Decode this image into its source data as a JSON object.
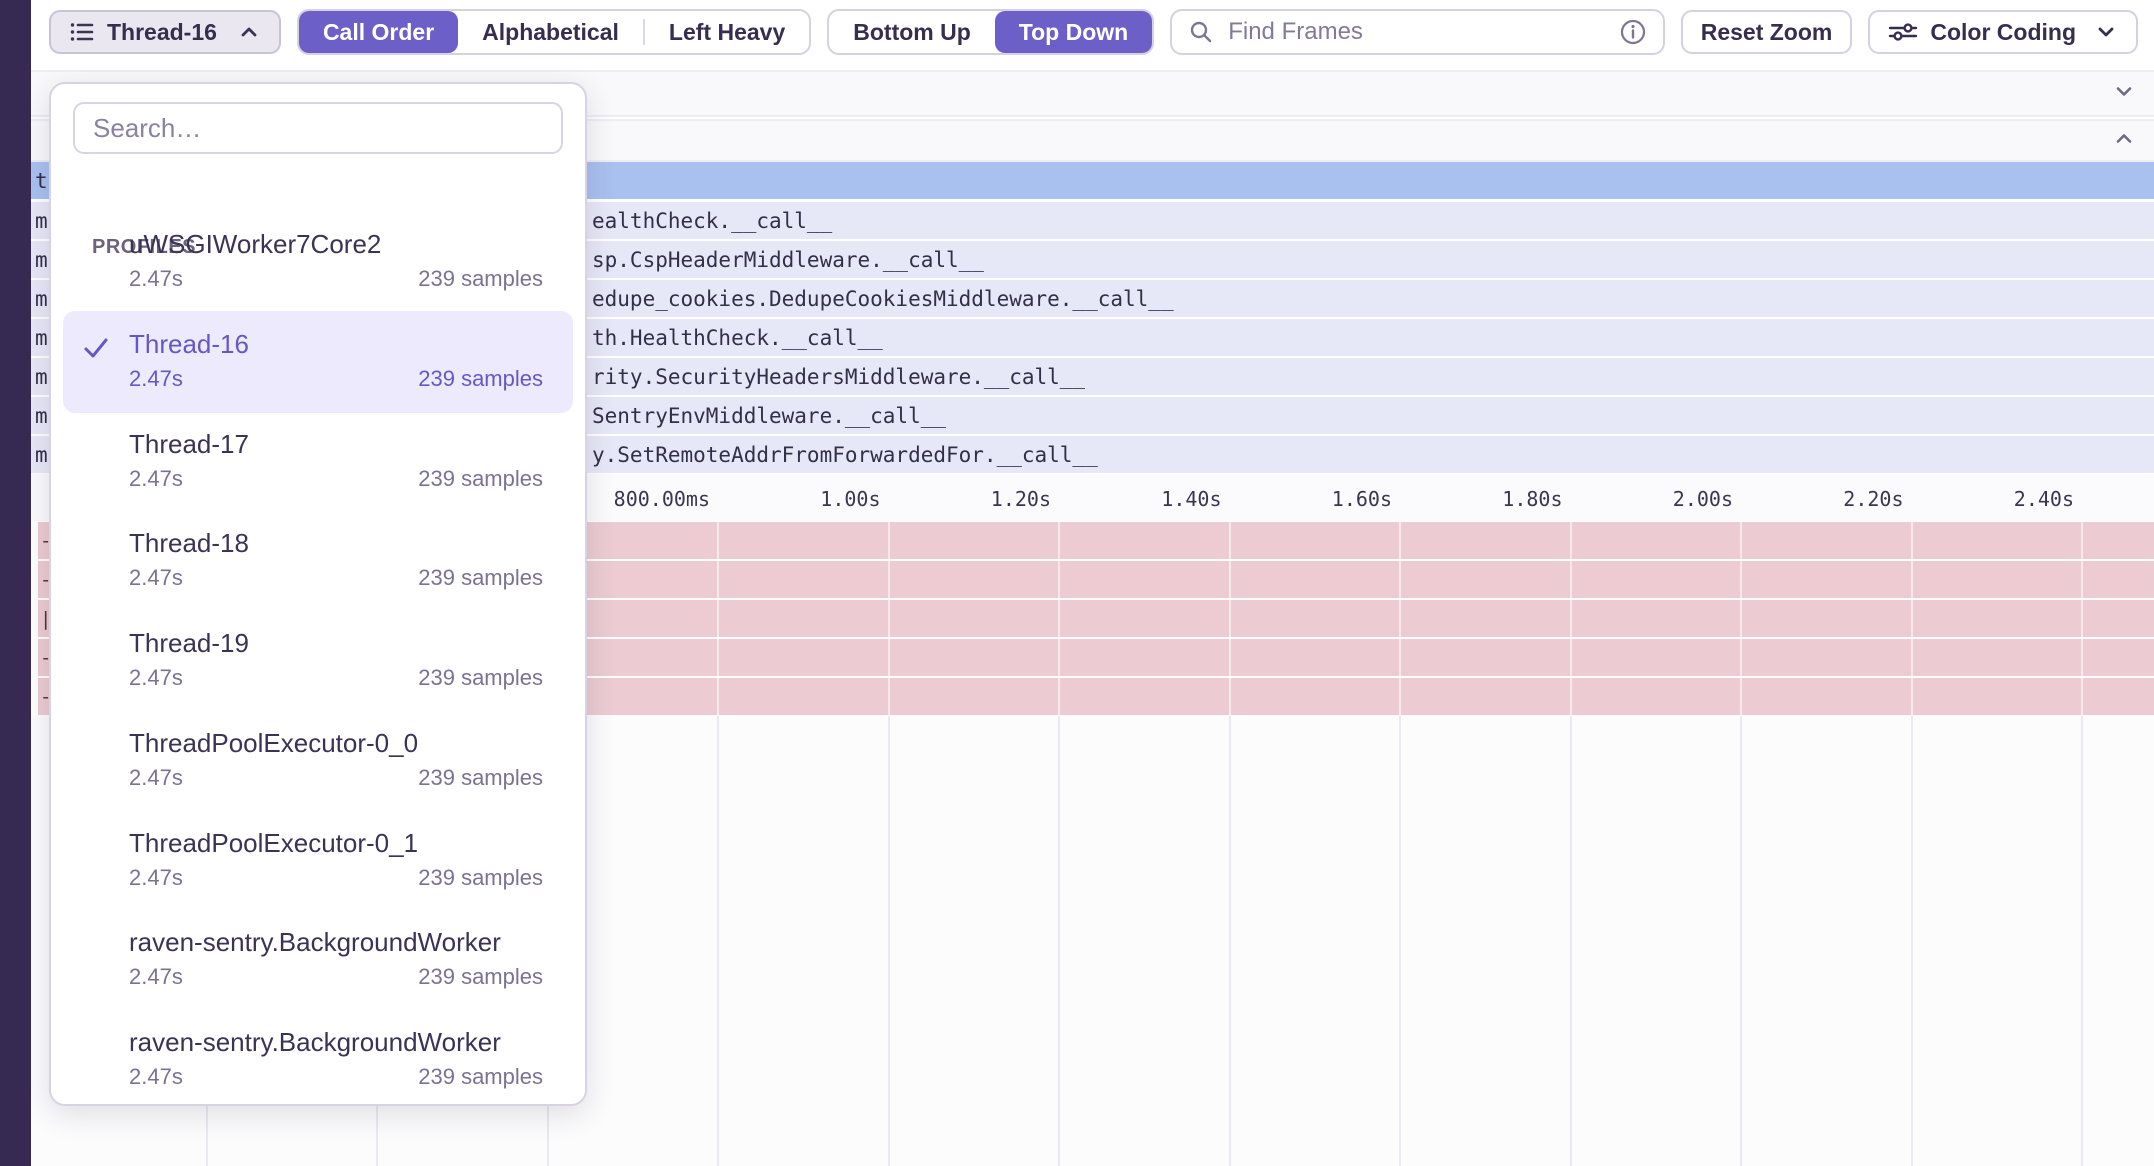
{
  "toolbar": {
    "thread_button": {
      "label": "Thread-16"
    },
    "sort_group": {
      "options": [
        "Call Order",
        "Alphabetical",
        "Left Heavy"
      ],
      "active": "Call Order"
    },
    "direction_group": {
      "options": [
        "Bottom Up",
        "Top Down"
      ],
      "active": "Top Down"
    },
    "search": {
      "placeholder": "Find Frames",
      "value": ""
    },
    "reset_zoom_label": "Reset Zoom",
    "color_coding_label": "Color Coding"
  },
  "dropdown": {
    "search_placeholder": "Search…",
    "search_value": "",
    "section_label": "PROFILES",
    "items": [
      {
        "name": "uWSGIWorker7Core2",
        "duration": "2.47s",
        "samples": "239 samples",
        "selected": false
      },
      {
        "name": "Thread-16",
        "duration": "2.47s",
        "samples": "239 samples",
        "selected": true
      },
      {
        "name": "Thread-17",
        "duration": "2.47s",
        "samples": "239 samples",
        "selected": false
      },
      {
        "name": "Thread-18",
        "duration": "2.47s",
        "samples": "239 samples",
        "selected": false
      },
      {
        "name": "Thread-19",
        "duration": "2.47s",
        "samples": "239 samples",
        "selected": false
      },
      {
        "name": "ThreadPoolExecutor-0_0",
        "duration": "2.47s",
        "samples": "239 samples",
        "selected": false
      },
      {
        "name": "ThreadPoolExecutor-0_1",
        "duration": "2.47s",
        "samples": "239 samples",
        "selected": false
      },
      {
        "name": "raven-sentry.BackgroundWorker",
        "duration": "2.47s",
        "samples": "239 samples",
        "selected": false
      },
      {
        "name": "raven-sentry.BackgroundWorker",
        "duration": "2.47s",
        "samples": "239 samples",
        "selected": false
      }
    ]
  },
  "flamegraph": {
    "selected_row_left_char": "t",
    "rows": [
      {
        "left_char": "m",
        "text": "ealthCheck.__call__"
      },
      {
        "left_char": "m",
        "text": "sp.CspHeaderMiddleware.__call__"
      },
      {
        "left_char": "m",
        "text": "edupe_cookies.DedupeCookiesMiddleware.__call__"
      },
      {
        "left_char": "m",
        "text": "th.HealthCheck.__call__"
      },
      {
        "left_char": "m",
        "text": "rity.SecurityHeadersMiddleware.__call__"
      },
      {
        "left_char": "m",
        "text": "SentryEnvMiddleware.__call__"
      },
      {
        "left_char": "m",
        "text": "y.SetRemoteAddrFromForwardedFor.__call__"
      }
    ],
    "pink_row_chars": [
      "-",
      "-",
      "|",
      "-",
      "-"
    ],
    "axis_ticks": [
      "800.00ms",
      "1.00s",
      "1.20s",
      "1.40s",
      "1.60s",
      "1.80s",
      "2.00s",
      "2.20s",
      "2.40s"
    ]
  },
  "colors": {
    "accent_purple": "#6d5fc8",
    "selected_row_blue": "#a9c1ef",
    "frame_row_lavender": "#e7e8f7",
    "frame_row_pink": "#ecccd2",
    "left_strip": "#372a52",
    "selected_item_bg": "#eceafc"
  }
}
